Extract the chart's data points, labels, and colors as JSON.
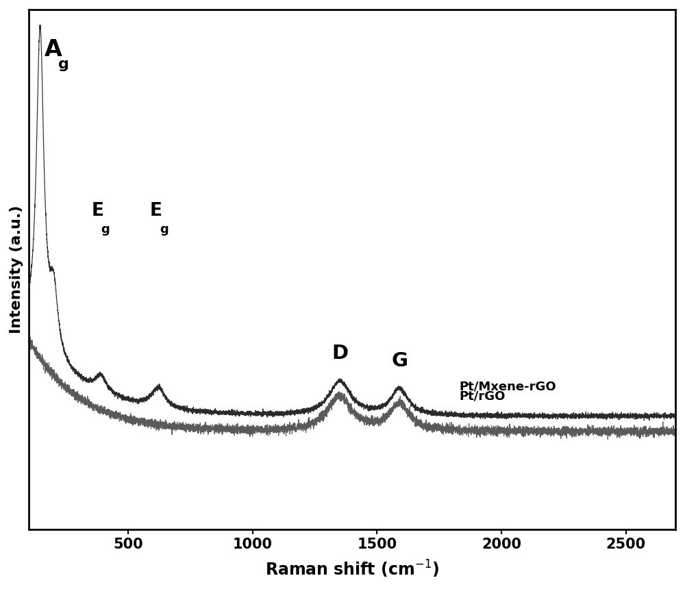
{
  "xlabel": "Raman shift (cm$^{-1}$)",
  "ylabel": "Intensity (a.u.)",
  "xlim": [
    100,
    2700
  ],
  "ylim": [
    0,
    1.0
  ],
  "xticks": [
    500,
    1000,
    1500,
    2000,
    2500
  ],
  "background_color": "#ffffff",
  "line_color_1": "#2a2a2a",
  "line_color_2": "#5a5a5a",
  "label_1": "Pt/Mxene-rGO",
  "label_2": "Pt/rGO"
}
